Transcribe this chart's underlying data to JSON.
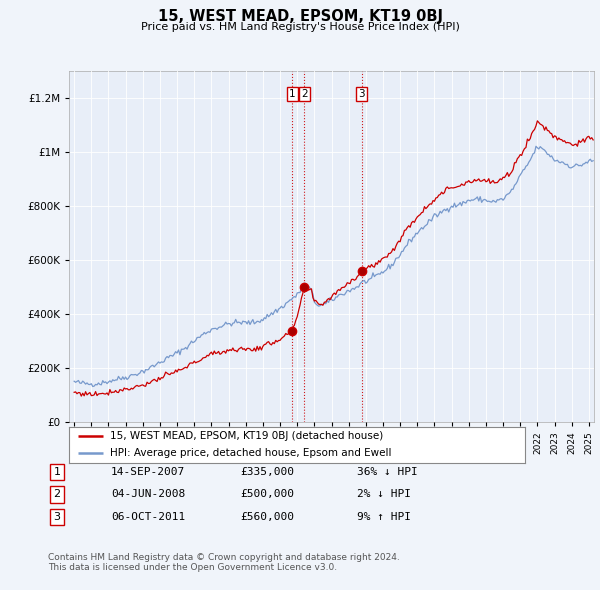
{
  "title": "15, WEST MEAD, EPSOM, KT19 0BJ",
  "subtitle": "Price paid vs. HM Land Registry's House Price Index (HPI)",
  "legend_line1": "15, WEST MEAD, EPSOM, KT19 0BJ (detached house)",
  "legend_line2": "HPI: Average price, detached house, Epsom and Ewell",
  "footnote1": "Contains HM Land Registry data © Crown copyright and database right 2024.",
  "footnote2": "This data is licensed under the Open Government Licence v3.0.",
  "transactions": [
    {
      "label": "1",
      "date": "14-SEP-2007",
      "price": 335000,
      "hpi_rel": "36% ↓ HPI",
      "year": 2007.71
    },
    {
      "label": "2",
      "date": "04-JUN-2008",
      "price": 500000,
      "hpi_rel": "2% ↓ HPI",
      "year": 2008.42
    },
    {
      "label": "3",
      "date": "06-OCT-2011",
      "price": 560000,
      "hpi_rel": "9% ↑ HPI",
      "year": 2011.76
    }
  ],
  "bg_color": "#f0f4fa",
  "plot_bg_color": "#e8eef8",
  "line_color_red": "#cc0000",
  "line_color_blue": "#7799cc",
  "vline_color": "#cc0000",
  "ylim": [
    0,
    1300000
  ],
  "xlim_start": 1994.7,
  "xlim_end": 2025.3,
  "t_years": [
    2007.71,
    2008.42,
    2011.76
  ],
  "t_prices": [
    335000,
    500000,
    560000
  ],
  "t_labels": [
    "1",
    "2",
    "3"
  ]
}
